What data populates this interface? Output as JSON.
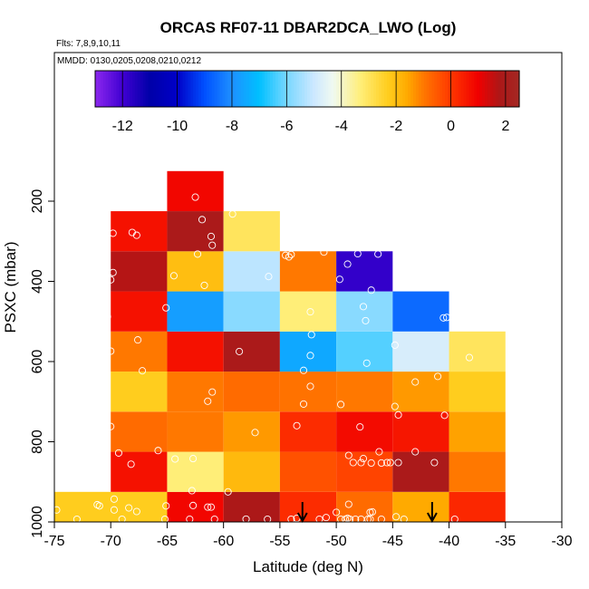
{
  "chart_data": {
    "type": "heatmap",
    "title": "ORCAS RF07-11 DBAR2DCA_LWO (Log)",
    "flights_label": "Flts: 7,8,9,10,11",
    "dates_label": "MMDD: 0130,0205,0208,0210,0212",
    "xlabel": "Latitude (deg N)",
    "ylabel": "PSXC (mbar)",
    "xlim": [
      -75,
      -30
    ],
    "ylim": [
      1000,
      50
    ],
    "x_ticks": [
      -75,
      -70,
      -65,
      -60,
      -55,
      -50,
      -45,
      -40,
      -35,
      -30
    ],
    "x_tick_labels": [
      "-75",
      "-70",
      "-65",
      "-60",
      "-55",
      "-50",
      "-45",
      "-40",
      "-35",
      "-30"
    ],
    "y_ticks": [
      200,
      400,
      600,
      800,
      1000
    ],
    "y_tick_labels": [
      "200",
      "400",
      "600",
      "800",
      "1000"
    ],
    "colorbar": {
      "range": [
        -13,
        2.5
      ],
      "ticks": [
        -12,
        -10,
        -8,
        -6,
        -4,
        -2,
        0,
        2
      ],
      "tick_labels": [
        "-12",
        "-10",
        "-8",
        "-6",
        "-4",
        "-2",
        "0",
        "2"
      ]
    },
    "cells": [
      {
        "lat": [
          -75,
          -65
        ],
        "p": [
          925,
          1025
        ],
        "value": -2.3
      },
      {
        "lat": [
          -65,
          -60
        ],
        "p": [
          925,
          1025
        ],
        "value": 0.9
      },
      {
        "lat": [
          -60,
          -55
        ],
        "p": [
          925,
          1025
        ],
        "value": 1.8
      },
      {
        "lat": [
          -55,
          -50
        ],
        "p": [
          925,
          1025
        ],
        "value": 0.2
      },
      {
        "lat": [
          -50,
          -45
        ],
        "p": [
          925,
          1025
        ],
        "value": -0.8
      },
      {
        "lat": [
          -45,
          -40
        ],
        "p": [
          925,
          1025
        ],
        "value": -1.6
      },
      {
        "lat": [
          -40,
          -35
        ],
        "p": [
          925,
          1025
        ],
        "value": 0.3
      },
      {
        "lat": [
          -70,
          -65
        ],
        "p": [
          825,
          925
        ],
        "value": 0.7
      },
      {
        "lat": [
          -65,
          -60
        ],
        "p": [
          825,
          925
        ],
        "value": -3.3
      },
      {
        "lat": [
          -60,
          -55
        ],
        "p": [
          825,
          925
        ],
        "value": -1.9
      },
      {
        "lat": [
          -55,
          -50
        ],
        "p": [
          825,
          925
        ],
        "value": -0.4
      },
      {
        "lat": [
          -50,
          -45
        ],
        "p": [
          825,
          925
        ],
        "value": -0.2
      },
      {
        "lat": [
          -45,
          -40
        ],
        "p": [
          825,
          925
        ],
        "value": 1.9
      },
      {
        "lat": [
          -40,
          -35
        ],
        "p": [
          825,
          925
        ],
        "value": -1.0
      },
      {
        "lat": [
          -70,
          -65
        ],
        "p": [
          725,
          825
        ],
        "value": -0.8
      },
      {
        "lat": [
          -65,
          -60
        ],
        "p": [
          725,
          825
        ],
        "value": -1.0
      },
      {
        "lat": [
          -60,
          -55
        ],
        "p": [
          725,
          825
        ],
        "value": -1.4
      },
      {
        "lat": [
          -55,
          -50
        ],
        "p": [
          725,
          825
        ],
        "value": 0.2
      },
      {
        "lat": [
          -50,
          -45
        ],
        "p": [
          725,
          825
        ],
        "value": 0.8
      },
      {
        "lat": [
          -45,
          -40
        ],
        "p": [
          725,
          825
        ],
        "value": 0.6
      },
      {
        "lat": [
          -40,
          -35
        ],
        "p": [
          725,
          825
        ],
        "value": -1.5
      },
      {
        "lat": [
          -70,
          -65
        ],
        "p": [
          625,
          725
        ],
        "value": -2.3
      },
      {
        "lat": [
          -65,
          -60
        ],
        "p": [
          625,
          725
        ],
        "value": -1.0
      },
      {
        "lat": [
          -60,
          -55
        ],
        "p": [
          625,
          725
        ],
        "value": -0.8
      },
      {
        "lat": [
          -55,
          -50
        ],
        "p": [
          625,
          725
        ],
        "value": -0.9
      },
      {
        "lat": [
          -50,
          -45
        ],
        "p": [
          625,
          725
        ],
        "value": -1.0
      },
      {
        "lat": [
          -45,
          -40
        ],
        "p": [
          625,
          725
        ],
        "value": -1.4
      },
      {
        "lat": [
          -40,
          -35
        ],
        "p": [
          625,
          725
        ],
        "value": -2.3
      },
      {
        "lat": [
          -70,
          -65
        ],
        "p": [
          525,
          625
        ],
        "value": -1.0
      },
      {
        "lat": [
          -65,
          -60
        ],
        "p": [
          525,
          625
        ],
        "value": 0.7
      },
      {
        "lat": [
          -60,
          -55
        ],
        "p": [
          525,
          625
        ],
        "value": 1.9
      },
      {
        "lat": [
          -55,
          -50
        ],
        "p": [
          525,
          625
        ],
        "value": -7.5
      },
      {
        "lat": [
          -50,
          -45
        ],
        "p": [
          525,
          625
        ],
        "value": -6.3
      },
      {
        "lat": [
          -45,
          -40
        ],
        "p": [
          525,
          625
        ],
        "value": -4.8
      },
      {
        "lat": [
          -40,
          -35
        ],
        "p": [
          525,
          625
        ],
        "value": -3.0
      },
      {
        "lat": [
          -70,
          -65
        ],
        "p": [
          425,
          525
        ],
        "value": 0.7
      },
      {
        "lat": [
          -65,
          -60
        ],
        "p": [
          425,
          525
        ],
        "value": -7.7
      },
      {
        "lat": [
          -60,
          -55
        ],
        "p": [
          425,
          525
        ],
        "value": -5.8
      },
      {
        "lat": [
          -55,
          -50
        ],
        "p": [
          425,
          525
        ],
        "value": -3.3
      },
      {
        "lat": [
          -50,
          -45
        ],
        "p": [
          425,
          525
        ],
        "value": -5.8
      },
      {
        "lat": [
          -45,
          -40
        ],
        "p": [
          425,
          525
        ],
        "value": -8.6
      },
      {
        "lat": [
          -70,
          -65
        ],
        "p": [
          325,
          425
        ],
        "value": 1.7
      },
      {
        "lat": [
          -65,
          -60
        ],
        "p": [
          325,
          425
        ],
        "value": -2.0
      },
      {
        "lat": [
          -60,
          -55
        ],
        "p": [
          325,
          425
        ],
        "value": -5.2
      },
      {
        "lat": [
          -55,
          -50
        ],
        "p": [
          325,
          425
        ],
        "value": -1.0
      },
      {
        "lat": [
          -50,
          -45
        ],
        "p": [
          325,
          425
        ],
        "value": -11.8
      },
      {
        "lat": [
          -70,
          -65
        ],
        "p": [
          225,
          325
        ],
        "value": 0.7
      },
      {
        "lat": [
          -65,
          -60
        ],
        "p": [
          225,
          325
        ],
        "value": 1.9
      },
      {
        "lat": [
          -60,
          -55
        ],
        "p": [
          225,
          325
        ],
        "value": -3.0
      },
      {
        "lat": [
          -65,
          -60
        ],
        "p": [
          125,
          225
        ],
        "value": 0.9
      }
    ],
    "points": [
      [
        -65.2,
        1000
      ],
      [
        -60.8,
        1000
      ],
      [
        -56.1,
        1000
      ],
      [
        -51.5,
        1000
      ],
      [
        -47.2,
        1000
      ],
      [
        -44.0,
        1000
      ],
      [
        -73.0,
        997
      ],
      [
        -69.0,
        995
      ],
      [
        -63.0,
        995
      ],
      [
        -58.0,
        993
      ],
      [
        -53.5,
        991
      ],
      [
        -49.0,
        991
      ],
      [
        -39.5,
        1000
      ],
      [
        -74.8,
        970
      ],
      [
        -71.2,
        957
      ],
      [
        -71.0,
        960
      ],
      [
        -69.7,
        943
      ],
      [
        -67.7,
        974
      ],
      [
        -65.1,
        960
      ],
      [
        -62.7,
        959
      ],
      [
        -61.4,
        963
      ],
      [
        -61.1,
        963
      ],
      [
        -59.6,
        925
      ],
      [
        -62.8,
        922
      ],
      [
        -69.7,
        970
      ],
      [
        -68.4,
        965
      ],
      [
        -49.6,
        1000
      ],
      [
        -49.2,
        1000
      ],
      [
        -48.8,
        1000
      ],
      [
        -48.3,
        1000
      ],
      [
        -47.8,
        1000
      ],
      [
        -47.0,
        1000
      ],
      [
        -46.0,
        1000
      ],
      [
        -50.0,
        976
      ],
      [
        -50.9,
        989
      ],
      [
        -48.9,
        956
      ],
      [
        -47.0,
        976
      ],
      [
        -46.8,
        975
      ],
      [
        -54.0,
        997
      ],
      [
        -44.7,
        987
      ],
      [
        -69.3,
        828
      ],
      [
        -68.2,
        856
      ],
      [
        -65.8,
        822
      ],
      [
        -64.3,
        843
      ],
      [
        -62.7,
        842
      ],
      [
        -48.9,
        834
      ],
      [
        -48.5,
        852
      ],
      [
        -47.8,
        852
      ],
      [
        -46.9,
        853
      ],
      [
        -46.0,
        853
      ],
      [
        -45.5,
        852
      ],
      [
        -45.2,
        852
      ],
      [
        -44.5,
        852
      ],
      [
        -41.3,
        852
      ],
      [
        -47.6,
        842
      ],
      [
        -46.2,
        825
      ],
      [
        -43.0,
        825
      ],
      [
        -70.0,
        762
      ],
      [
        -57.2,
        777
      ],
      [
        -53.5,
        760
      ],
      [
        -47.9,
        763
      ],
      [
        -44.5,
        733
      ],
      [
        -40.4,
        734
      ],
      [
        -61.4,
        699
      ],
      [
        -61.0,
        676
      ],
      [
        -52.9,
        706
      ],
      [
        -49.6,
        707
      ],
      [
        -44.8,
        712
      ],
      [
        -67.2,
        623
      ],
      [
        -52.9,
        622
      ],
      [
        -52.3,
        662
      ],
      [
        -43.0,
        651
      ],
      [
        -41.0,
        637
      ],
      [
        -70.0,
        574
      ],
      [
        -67.6,
        546
      ],
      [
        -58.6,
        575
      ],
      [
        -52.3,
        585
      ],
      [
        -52.2,
        533
      ],
      [
        -47.3,
        604
      ],
      [
        -44.8,
        559
      ],
      [
        -38.2,
        590
      ],
      [
        -70.3,
        488
      ],
      [
        -65.1,
        466
      ],
      [
        -52.3,
        476
      ],
      [
        -47.4,
        498
      ],
      [
        -40.5,
        491
      ],
      [
        -40.2,
        490
      ],
      [
        -47.6,
        463
      ],
      [
        -46.9,
        422
      ],
      [
        -70.0,
        396
      ],
      [
        -69.8,
        378
      ],
      [
        -64.4,
        386
      ],
      [
        -61.7,
        410
      ],
      [
        -56.0,
        388
      ],
      [
        -54.2,
        339
      ],
      [
        -54.5,
        335
      ],
      [
        -54.0,
        333
      ],
      [
        -51.1,
        327
      ],
      [
        -49.7,
        395
      ],
      [
        -49.0,
        357
      ],
      [
        -48.1,
        331
      ],
      [
        -46.3,
        332
      ],
      [
        -62.3,
        332
      ],
      [
        -61.0,
        310
      ],
      [
        -54.5,
        304
      ],
      [
        -68.1,
        278
      ],
      [
        -69.8,
        280
      ],
      [
        -67.7,
        285
      ],
      [
        -61.1,
        288
      ],
      [
        -62.5,
        190
      ],
      [
        -61.9,
        246
      ],
      [
        -59.2,
        232
      ],
      [
        -75.2,
        756
      ]
    ],
    "arrows_lat": [
      -53.0,
      -41.5
    ]
  }
}
